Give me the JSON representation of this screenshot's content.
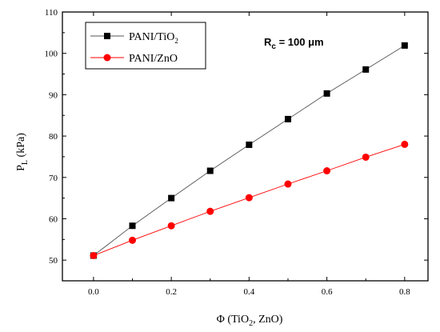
{
  "chart_data": {
    "type": "line",
    "title": "",
    "xlabel": "Φ (TiO",
    "xlabel_sub": "2",
    "xlabel_tail": ", ZnO)",
    "ylabel": "P",
    "ylabel_sub": "L",
    "ylabel_tail": " (kPa)",
    "xlim": [
      -0.08,
      0.86
    ],
    "ylim": [
      45,
      110
    ],
    "x_ticks": [
      0.0,
      0.2,
      0.4,
      0.6,
      0.8
    ],
    "x_tick_labels": [
      "0.0",
      "0.2",
      "0.4",
      "0.6",
      "0.8"
    ],
    "y_ticks": [
      50,
      60,
      70,
      80,
      90,
      100,
      110
    ],
    "y_tick_labels": [
      "50",
      "60",
      "70",
      "80",
      "90",
      "100",
      "110"
    ],
    "x": [
      0.0,
      0.1,
      0.2,
      0.3,
      0.4,
      0.5,
      0.6,
      0.7,
      0.8
    ],
    "series": [
      {
        "name": "PANI/TiO",
        "name_sub": "2",
        "color": "#000000",
        "line_color": "#555555",
        "marker": "square",
        "values": [
          51.1,
          58.3,
          65.0,
          71.6,
          77.9,
          84.1,
          90.3,
          96.1,
          101.9
        ]
      },
      {
        "name": "PANI/ZnO",
        "name_sub": "",
        "color": "#ff0000",
        "line_color": "#ff0000",
        "marker": "circle",
        "values": [
          51.1,
          54.8,
          58.3,
          61.8,
          65.1,
          68.4,
          71.6,
          74.9,
          78.0
        ]
      }
    ],
    "annotation": {
      "main": "R",
      "sub": "c",
      "tail": " = 100 μm"
    },
    "legend_position": "top-left",
    "grid": false
  }
}
